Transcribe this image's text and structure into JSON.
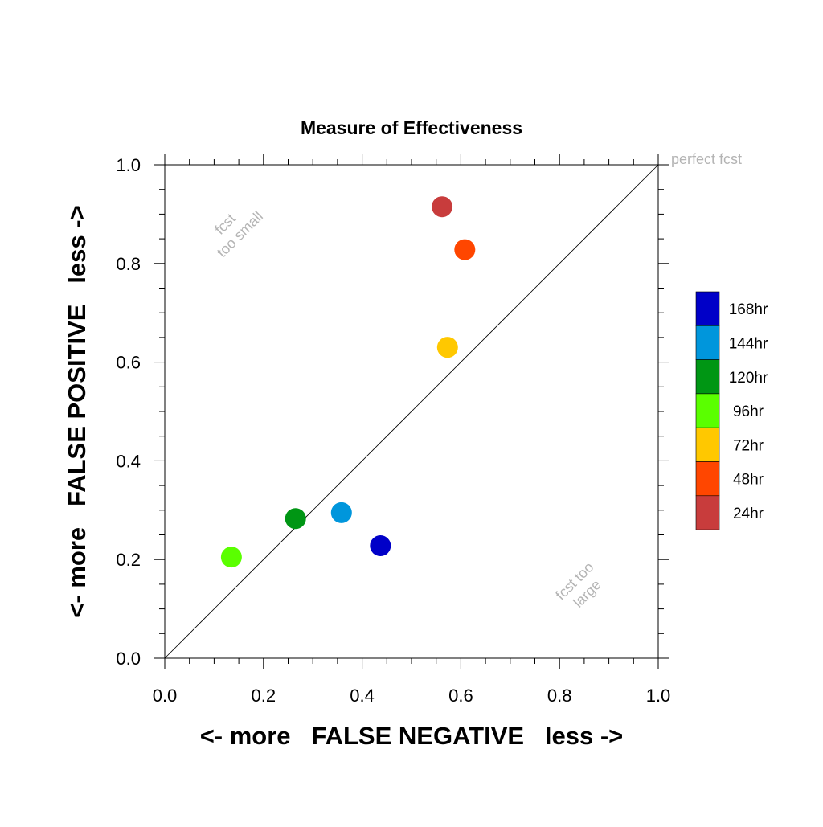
{
  "chart_data": {
    "type": "scatter",
    "title": "Measure of Effectiveness",
    "xlabel": "<- more   FALSE NEGATIVE   less ->",
    "ylabel": "<- more   FALSE POSITIVE   less ->",
    "xlim": [
      0.0,
      1.0
    ],
    "ylim": [
      0.0,
      1.0
    ],
    "x_ticks": [
      "0.0",
      "0.2",
      "0.4",
      "0.6",
      "0.8",
      "1.0"
    ],
    "y_ticks": [
      "0.0",
      "0.2",
      "0.4",
      "0.6",
      "0.8",
      "1.0"
    ],
    "grid": false,
    "legend_position": "right",
    "diagonal_line": true,
    "annotations": {
      "top_left": [
        "fcst",
        "too small"
      ],
      "bottom_right": [
        "fcst too",
        "large"
      ],
      "top_right": "perfect fcst"
    },
    "series": [
      {
        "name": "24hr",
        "color": "#c83c3c",
        "x": 0.562,
        "y": 0.915
      },
      {
        "name": "48hr",
        "color": "#ff4600",
        "x": 0.608,
        "y": 0.828
      },
      {
        "name": "72hr",
        "color": "#ffc800",
        "x": 0.573,
        "y": 0.63
      },
      {
        "name": "96hr",
        "color": "#5aff00",
        "x": 0.135,
        "y": 0.205
      },
      {
        "name": "120hr",
        "color": "#009614",
        "x": 0.265,
        "y": 0.283
      },
      {
        "name": "144hr",
        "color": "#0096dc",
        "x": 0.358,
        "y": 0.295
      },
      {
        "name": "168hr",
        "color": "#0000c8",
        "x": 0.437,
        "y": 0.228
      }
    ],
    "legend_order": [
      "168hr",
      "144hr",
      "120hr",
      "96hr",
      "72hr",
      "48hr",
      "24hr"
    ]
  }
}
